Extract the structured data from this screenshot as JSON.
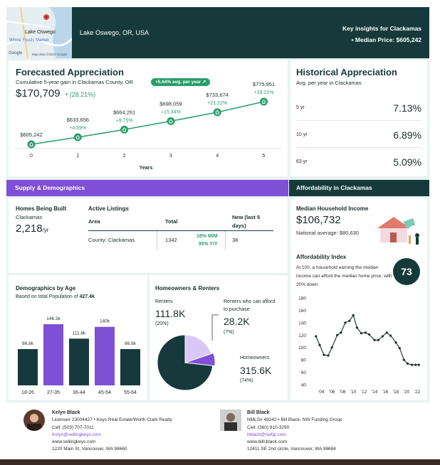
{
  "header": {
    "map": {
      "city": "Lake Oswego",
      "poi": "Whole Foods Market",
      "brand": "Google",
      "attribution": "Map data ©2024 Google"
    },
    "location": "Lake Oswego, OR, USA",
    "title": "Key insights for Clackamas",
    "median_price": "• Median Price: $605,242"
  },
  "forecast": {
    "title": "Forecasted Appreciation",
    "subtitle": "Cumulative 5-year gain in Clackamas County, OR",
    "badge": "+5.64% avg. per year",
    "value": "$170,709",
    "pct": "(28.21%)",
    "xlabel": "Years"
  },
  "historical": {
    "title": "Historical Appreciation",
    "subtitle": "Avg. per year in Clackamas",
    "rows": [
      {
        "label": "5 yr",
        "value": "7.13%"
      },
      {
        "label": "10 yr",
        "value": "6.89%"
      },
      {
        "label": "63 yr",
        "value": "5.09%"
      }
    ]
  },
  "supply": {
    "banner": "Supply & Demographics",
    "homes_built": {
      "title": "Homes Being Built",
      "county": "Clackamas",
      "value": "2,218",
      "unit": "/yr"
    },
    "listings": {
      "title": "Active Listings",
      "headers": [
        "Area",
        "Total",
        "New (last 5 days)"
      ],
      "row": {
        "area": "County: Clackamas",
        "total": "1342",
        "mm": "16% M/M",
        "yy": "35%  Y/Y",
        "new": "38"
      }
    }
  },
  "afford": {
    "banner": "Affordability in Clackamas",
    "income_title": "Median Household Income",
    "income": "$106,732",
    "national": "National average: $80,630",
    "index_title": "Affordability Index",
    "index_desc": "At 100, a household earning the median income can afford the median home price, with 20% down.",
    "index_value": "73"
  },
  "demographics": {
    "title": "Demographics by Age",
    "subtitle_pre": "Based on total Population of ",
    "subtitle_val": "427.4k"
  },
  "owners": {
    "title": "Homeowners & Renters",
    "renters_label": "Renters",
    "renters_value": "111.8K",
    "renters_pct": "(20%)",
    "afford_label": "Renters who can afford to purchase",
    "afford_value": "28.2K",
    "afford_pct": "(7%)",
    "owners_label": "Homeowners",
    "owners_value": "315.6K",
    "owners_pct": "(74%)"
  },
  "agents": [
    {
      "name": "Kelyn Black",
      "license": "License# 23004427 • Keys Real Estate/Worth Clark Realty",
      "cell": "Cell: (503) 707-7011",
      "email": "Kelyn@sellingkeys.com",
      "web": "www.sellingkeys.com",
      "addr": "1220 Main St, Vancouver, WA 98660"
    },
    {
      "name": "Bill Black",
      "license": "NMLS# 49242 • Bill Black- NW Funding Group",
      "cell": "Cell: (360) 910-3290",
      "email": "bblack@nwfgi.com",
      "web": "www.billcblack.com",
      "addr": "12411 SE 2nd circle, Vancouver, WA 98684"
    }
  ],
  "colors": {
    "dark_teal": "#163a3c",
    "accent_green": "#2a9d6a",
    "purple": "#7f4fd6",
    "light_purple": "#d9c8f5"
  },
  "chart_data": [
    {
      "type": "line",
      "title": "Forecasted Appreciation",
      "xlabel": "Years",
      "x": [
        0,
        1,
        2,
        3,
        4,
        5
      ],
      "values": [
        605242,
        633656,
        664261,
        698059,
        733674,
        775951
      ],
      "labels": [
        "$605,242",
        "$633,656",
        "$664,261",
        "$698,059",
        "$733,674",
        "$775,951"
      ],
      "pct_labels": [
        "",
        "+4.69%",
        "+9.75%",
        "+15.34%",
        "+21.22%",
        "+28.21%"
      ]
    },
    {
      "type": "bar",
      "title": "Demographics by Age",
      "categories": [
        "18-26",
        "27-35",
        "36-44",
        "45-54",
        "55-64"
      ],
      "values": [
        86.8,
        146.3,
        111.8,
        140,
        86.8
      ],
      "labels": [
        "86.8k",
        "146.3k",
        "111.8k",
        "140k",
        "86.8k"
      ],
      "colors": [
        "#163a3c",
        "#7f4fd6",
        "#163a3c",
        "#7f4fd6",
        "#163a3c"
      ]
    },
    {
      "type": "pie",
      "title": "Homeowners & Renters",
      "slices": [
        {
          "name": "Homeowners",
          "value": 74,
          "color": "#163a3c"
        },
        {
          "name": "Renters",
          "value": 20,
          "color": "#d9c8f5"
        },
        {
          "name": "Renters who can afford to purchase",
          "value": 7,
          "color": "#7f4fd6"
        }
      ]
    },
    {
      "type": "line",
      "title": "Affordability Index",
      "x_ticks": [
        "'04",
        "'06",
        "'08",
        "'10",
        "'12",
        "'14",
        "'16",
        "'18",
        "'20",
        "'22"
      ],
      "ylim": [
        40,
        180
      ],
      "y_ticks": [
        40,
        60,
        80,
        100,
        120,
        140,
        160,
        180
      ],
      "x": [
        2003,
        2003.7,
        2004.5,
        2005.3,
        2006,
        2007,
        2007.7,
        2008.5,
        2009.3,
        2010,
        2010.7,
        2011.5,
        2012.3,
        2013,
        2014,
        2014.7,
        2015.5,
        2016.3,
        2017,
        2018,
        2018.7,
        2019.5,
        2020.2,
        2021,
        2021.7,
        2022.3
      ],
      "values": [
        118,
        104,
        88,
        87,
        100,
        120,
        124,
        140,
        143,
        152,
        132,
        123,
        124,
        121,
        112,
        112,
        118,
        124,
        119,
        108,
        99,
        80,
        74,
        72,
        72,
        72
      ]
    }
  ]
}
